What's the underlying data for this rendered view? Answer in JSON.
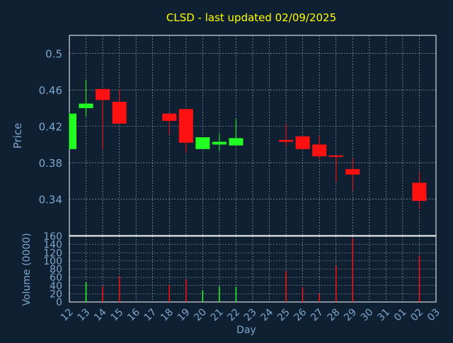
{
  "theme": {
    "background": "#0f2033",
    "title_color": "#ffff00",
    "axis_text_color": "#7ea6cc",
    "grid_color": "#ffffff",
    "up_color": "#22ff22",
    "down_color": "#ff1111"
  },
  "chart_data": [
    {
      "type": "candlestick",
      "title": "CLSD - last updated 02/09/2025",
      "ylabel": "Price",
      "ylim": [
        0.3,
        0.52
      ],
      "yticks": [
        "0.34",
        "0.38",
        "0.42",
        "0.46",
        "0.5"
      ],
      "grid": true,
      "categories": [
        "12",
        "13",
        "14",
        "15",
        "16",
        "17",
        "18",
        "19",
        "20",
        "21",
        "22",
        "23",
        "24",
        "25",
        "26",
        "27",
        "28",
        "29",
        "30",
        "31",
        "01",
        "02",
        "03"
      ],
      "candles": [
        {
          "day": "12",
          "open": 0.395,
          "high": 0.435,
          "low": 0.395,
          "close": 0.434
        },
        {
          "day": "13",
          "open": 0.44,
          "high": 0.471,
          "low": 0.431,
          "close": 0.445
        },
        {
          "day": "14",
          "open": 0.461,
          "high": 0.461,
          "low": 0.395,
          "close": 0.449
        },
        {
          "day": "15",
          "open": 0.447,
          "high": 0.461,
          "low": 0.423,
          "close": 0.423
        },
        {
          "day": "18",
          "open": 0.434,
          "high": 0.434,
          "low": 0.411,
          "close": 0.426
        },
        {
          "day": "19",
          "open": 0.439,
          "high": 0.439,
          "low": 0.391,
          "close": 0.402
        },
        {
          "day": "20",
          "open": 0.395,
          "high": 0.408,
          "low": 0.395,
          "close": 0.408
        },
        {
          "day": "21",
          "open": 0.4,
          "high": 0.412,
          "low": 0.393,
          "close": 0.403
        },
        {
          "day": "22",
          "open": 0.399,
          "high": 0.428,
          "low": 0.399,
          "close": 0.407
        },
        {
          "day": "25",
          "open": 0.405,
          "high": 0.423,
          "low": 0.398,
          "close": 0.403
        },
        {
          "day": "26",
          "open": 0.409,
          "high": 0.409,
          "low": 0.395,
          "close": 0.395
        },
        {
          "day": "27",
          "open": 0.4,
          "high": 0.41,
          "low": 0.384,
          "close": 0.387
        },
        {
          "day": "28",
          "open": 0.388,
          "high": 0.388,
          "low": 0.359,
          "close": 0.387
        },
        {
          "day": "29",
          "open": 0.373,
          "high": 0.385,
          "low": 0.349,
          "close": 0.367
        },
        {
          "day": "02",
          "open": 0.358,
          "high": 0.37,
          "low": 0.329,
          "close": 0.338
        }
      ]
    },
    {
      "type": "bar",
      "ylabel": "Volume (0000)",
      "xlabel": "Day",
      "ylim": [
        0,
        160
      ],
      "yticks": [
        "0",
        "20",
        "40",
        "60",
        "80",
        "100",
        "120",
        "140",
        "160"
      ],
      "grid": true,
      "categories": [
        "12",
        "13",
        "14",
        "15",
        "16",
        "17",
        "18",
        "19",
        "20",
        "21",
        "22",
        "23",
        "24",
        "25",
        "26",
        "27",
        "28",
        "29",
        "30",
        "31",
        "01",
        "02",
        "03"
      ],
      "bars": [
        {
          "day": "13",
          "value": 48,
          "direction": "up"
        },
        {
          "day": "14",
          "value": 38,
          "direction": "down"
        },
        {
          "day": "15",
          "value": 62,
          "direction": "down"
        },
        {
          "day": "18",
          "value": 42,
          "direction": "down"
        },
        {
          "day": "19",
          "value": 55,
          "direction": "down"
        },
        {
          "day": "20",
          "value": 28,
          "direction": "up"
        },
        {
          "day": "21",
          "value": 38,
          "direction": "up"
        },
        {
          "day": "22",
          "value": 37,
          "direction": "up"
        },
        {
          "day": "25",
          "value": 75,
          "direction": "down"
        },
        {
          "day": "26",
          "value": 36,
          "direction": "down"
        },
        {
          "day": "27",
          "value": 20,
          "direction": "down"
        },
        {
          "day": "28",
          "value": 88,
          "direction": "down"
        },
        {
          "day": "29",
          "value": 155,
          "direction": "down"
        },
        {
          "day": "02",
          "value": 113,
          "direction": "down"
        }
      ]
    }
  ]
}
